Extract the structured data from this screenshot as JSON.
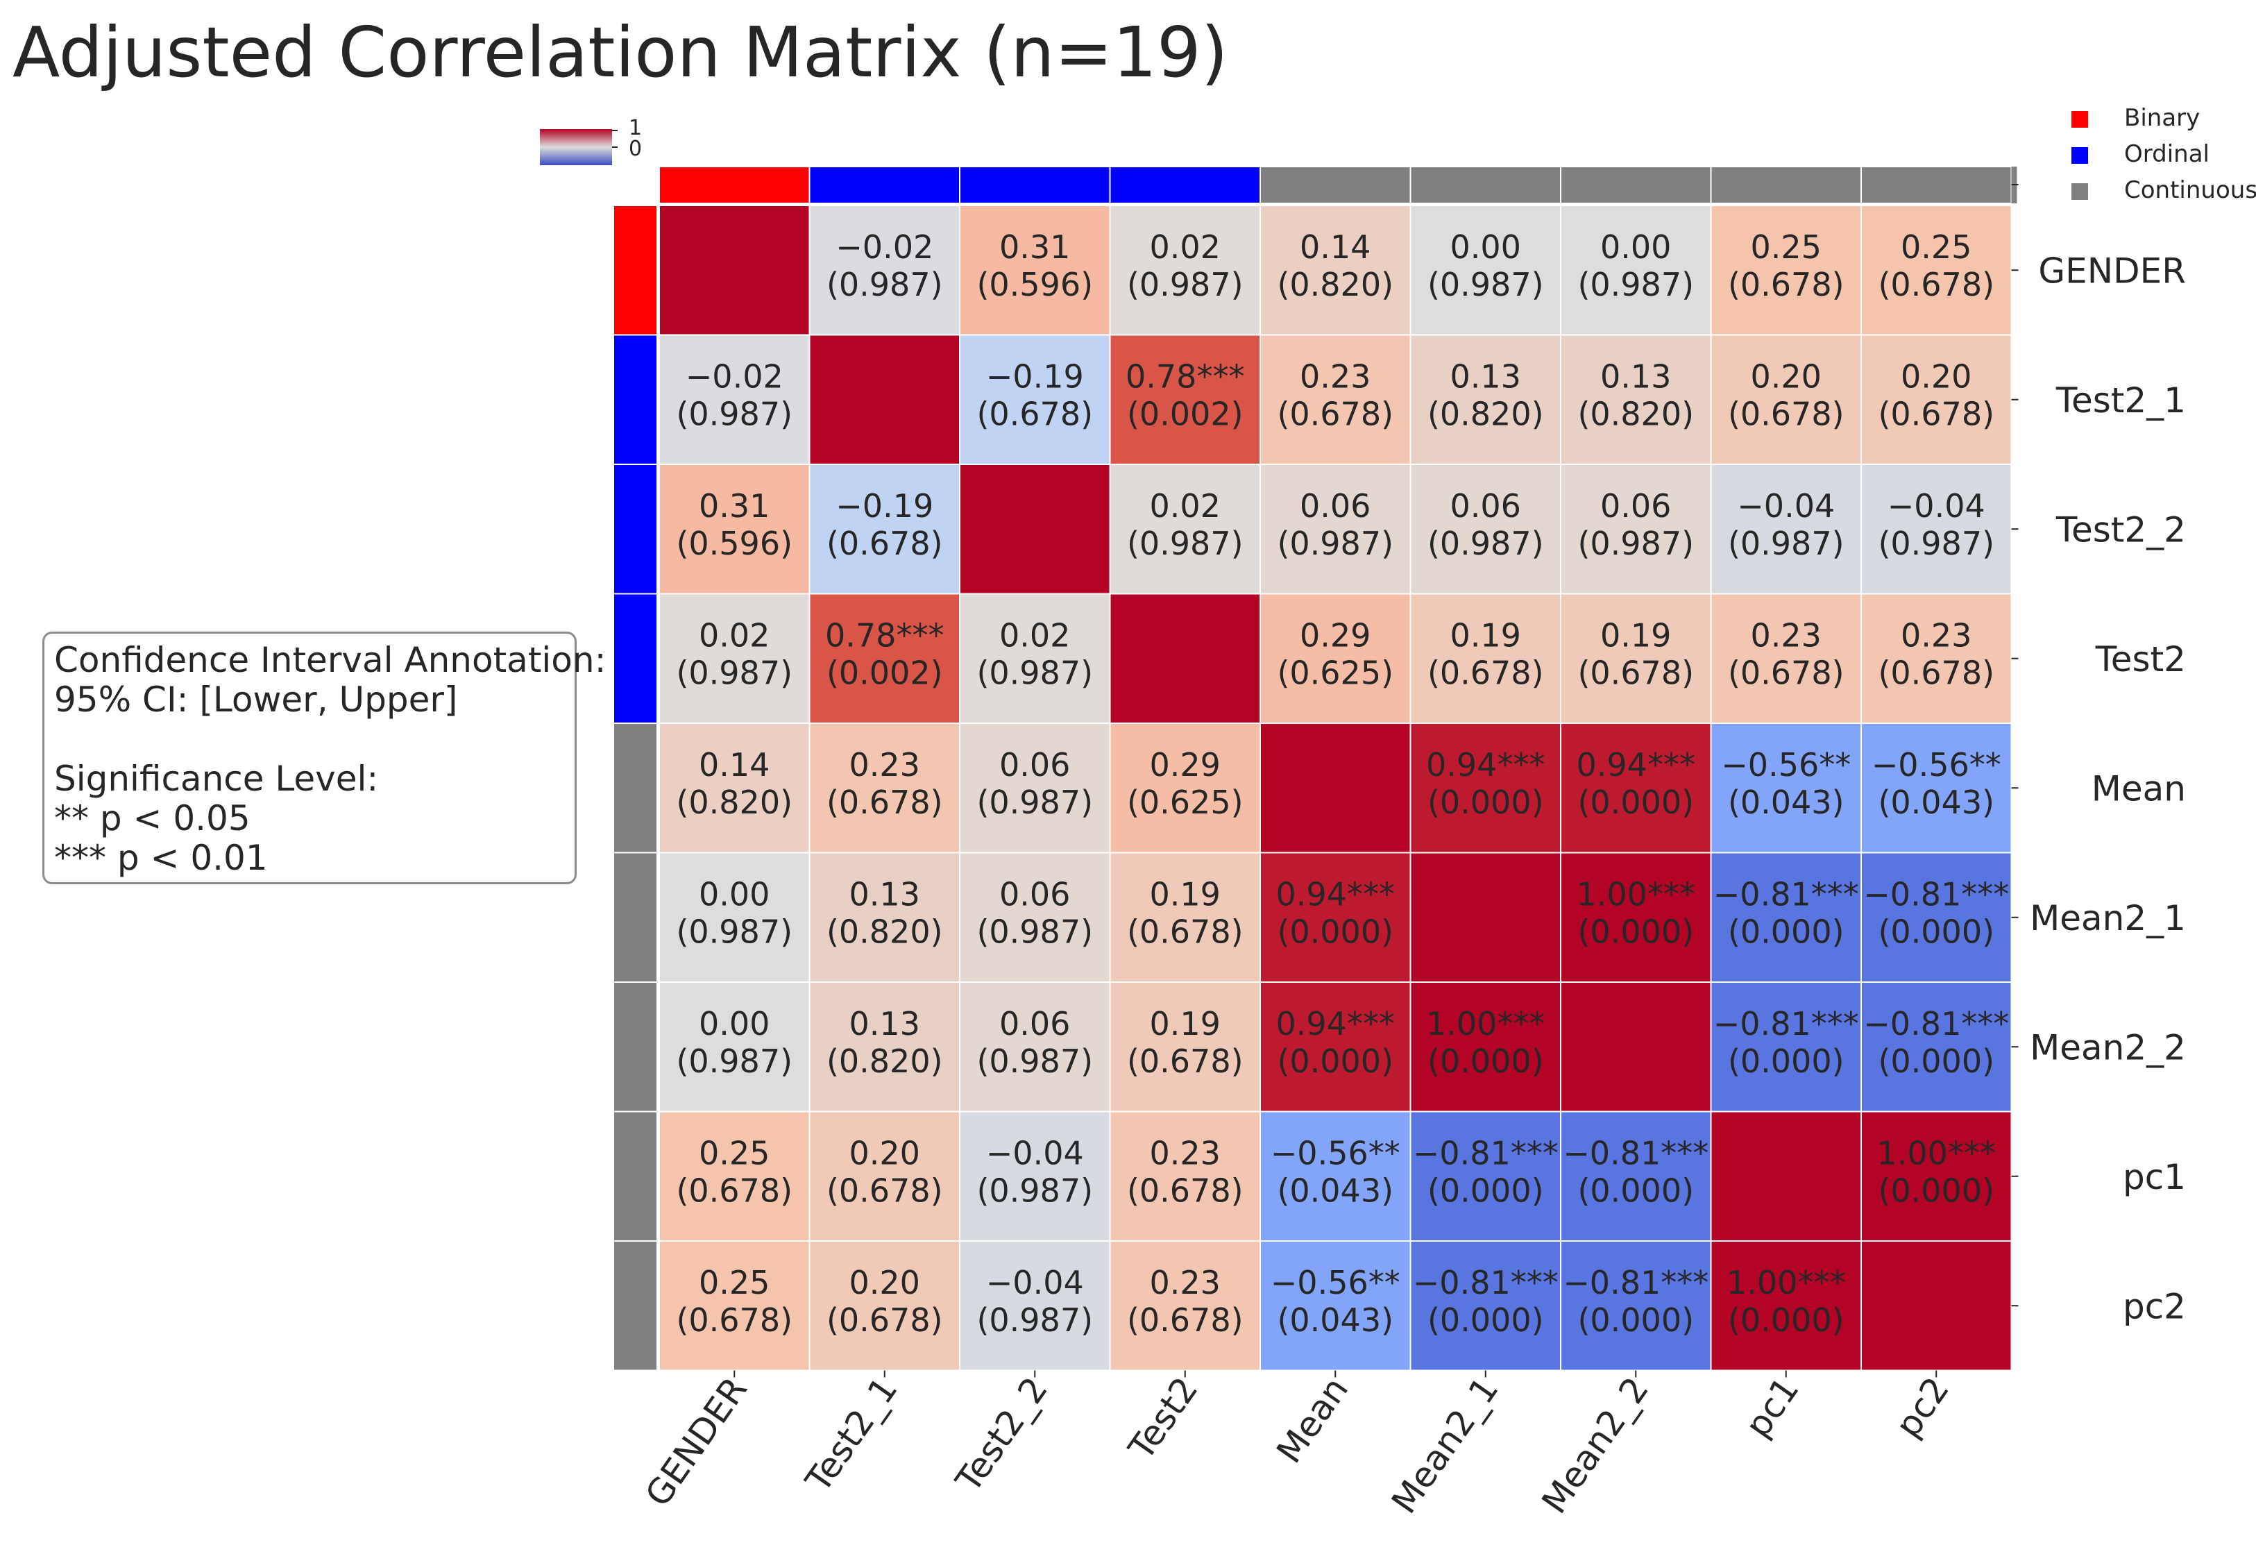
{
  "title": "Adjusted Correlation Matrix (n=19)",
  "annotation": {
    "lines": [
      "Confidence Interval Annotation:",
      "95% CI: [Lower, Upper]",
      "",
      "Significance Level:",
      "** p < 0.05",
      "*** p < 0.01"
    ]
  },
  "legend": {
    "items": [
      {
        "label": "Binary",
        "color": "#ff0000"
      },
      {
        "label": "Ordinal",
        "color": "#0000ff"
      },
      {
        "label": "Continuous",
        "color": "#808080"
      }
    ]
  },
  "colorbar": {
    "ticks": [
      "1",
      "0"
    ],
    "colormap": "coolwarm"
  },
  "chart_data": {
    "type": "heatmap",
    "title": "Adjusted Correlation Matrix (n=19)",
    "variables": [
      "GENDER",
      "Test2_1",
      "Test2_2",
      "Test2",
      "Mean",
      "Mean2_1",
      "Mean2_2",
      "pc1",
      "pc2"
    ],
    "variable_types": [
      "Binary",
      "Ordinal",
      "Ordinal",
      "Ordinal",
      "Continuous",
      "Continuous",
      "Continuous",
      "Continuous",
      "Continuous"
    ],
    "value_range": [
      -1,
      1
    ],
    "diagonal_annotated": false,
    "cells": [
      [
        null,
        {
          "r": "−0.02",
          "p": "(0.987)"
        },
        {
          "r": "0.31",
          "p": "(0.596)"
        },
        {
          "r": "0.02",
          "p": "(0.987)"
        },
        {
          "r": "0.14",
          "p": "(0.820)"
        },
        {
          "r": "0.00",
          "p": "(0.987)"
        },
        {
          "r": "0.00",
          "p": "(0.987)"
        },
        {
          "r": "0.25",
          "p": "(0.678)"
        },
        {
          "r": "0.25",
          "p": "(0.678)"
        }
      ],
      [
        {
          "r": "−0.02",
          "p": "(0.987)"
        },
        null,
        {
          "r": "−0.19",
          "p": "(0.678)"
        },
        {
          "r": "0.78***",
          "p": "(0.002)"
        },
        {
          "r": "0.23",
          "p": "(0.678)"
        },
        {
          "r": "0.13",
          "p": "(0.820)"
        },
        {
          "r": "0.13",
          "p": "(0.820)"
        },
        {
          "r": "0.20",
          "p": "(0.678)"
        },
        {
          "r": "0.20",
          "p": "(0.678)"
        }
      ],
      [
        {
          "r": "0.31",
          "p": "(0.596)"
        },
        {
          "r": "−0.19",
          "p": "(0.678)"
        },
        null,
        {
          "r": "0.02",
          "p": "(0.987)"
        },
        {
          "r": "0.06",
          "p": "(0.987)"
        },
        {
          "r": "0.06",
          "p": "(0.987)"
        },
        {
          "r": "0.06",
          "p": "(0.987)"
        },
        {
          "r": "−0.04",
          "p": "(0.987)"
        },
        {
          "r": "−0.04",
          "p": "(0.987)"
        }
      ],
      [
        {
          "r": "0.02",
          "p": "(0.987)"
        },
        {
          "r": "0.78***",
          "p": "(0.002)"
        },
        {
          "r": "0.02",
          "p": "(0.987)"
        },
        null,
        {
          "r": "0.29",
          "p": "(0.625)"
        },
        {
          "r": "0.19",
          "p": "(0.678)"
        },
        {
          "r": "0.19",
          "p": "(0.678)"
        },
        {
          "r": "0.23",
          "p": "(0.678)"
        },
        {
          "r": "0.23",
          "p": "(0.678)"
        }
      ],
      [
        {
          "r": "0.14",
          "p": "(0.820)"
        },
        {
          "r": "0.23",
          "p": "(0.678)"
        },
        {
          "r": "0.06",
          "p": "(0.987)"
        },
        {
          "r": "0.29",
          "p": "(0.625)"
        },
        null,
        {
          "r": "0.94***",
          "p": "(0.000)"
        },
        {
          "r": "0.94***",
          "p": "(0.000)"
        },
        {
          "r": "−0.56**",
          "p": "(0.043)"
        },
        {
          "r": "−0.56**",
          "p": "(0.043)"
        }
      ],
      [
        {
          "r": "0.00",
          "p": "(0.987)"
        },
        {
          "r": "0.13",
          "p": "(0.820)"
        },
        {
          "r": "0.06",
          "p": "(0.987)"
        },
        {
          "r": "0.19",
          "p": "(0.678)"
        },
        {
          "r": "0.94***",
          "p": "(0.000)"
        },
        null,
        {
          "r": "1.00***",
          "p": "(0.000)"
        },
        {
          "r": "−0.81***",
          "p": "(0.000)"
        },
        {
          "r": "−0.81***",
          "p": "(0.000)"
        }
      ],
      [
        {
          "r": "0.00",
          "p": "(0.987)"
        },
        {
          "r": "0.13",
          "p": "(0.820)"
        },
        {
          "r": "0.06",
          "p": "(0.987)"
        },
        {
          "r": "0.19",
          "p": "(0.678)"
        },
        {
          "r": "0.94***",
          "p": "(0.000)"
        },
        {
          "r": "1.00***",
          "p": "(0.000)"
        },
        null,
        {
          "r": "−0.81***",
          "p": "(0.000)"
        },
        {
          "r": "−0.81***",
          "p": "(0.000)"
        }
      ],
      [
        {
          "r": "0.25",
          "p": "(0.678)"
        },
        {
          "r": "0.20",
          "p": "(0.678)"
        },
        {
          "r": "−0.04",
          "p": "(0.987)"
        },
        {
          "r": "0.23",
          "p": "(0.678)"
        },
        {
          "r": "−0.56**",
          "p": "(0.043)"
        },
        {
          "r": "−0.81***",
          "p": "(0.000)"
        },
        {
          "r": "−0.81***",
          "p": "(0.000)"
        },
        null,
        {
          "r": "1.00***",
          "p": "(0.000)"
        }
      ],
      [
        {
          "r": "0.25",
          "p": "(0.678)"
        },
        {
          "r": "0.20",
          "p": "(0.678)"
        },
        {
          "r": "−0.04",
          "p": "(0.987)"
        },
        {
          "r": "0.23",
          "p": "(0.678)"
        },
        {
          "r": "−0.56**",
          "p": "(0.043)"
        },
        {
          "r": "−0.81***",
          "p": "(0.000)"
        },
        {
          "r": "−0.81***",
          "p": "(0.000)"
        },
        {
          "r": "1.00***",
          "p": "(0.000)"
        },
        null
      ]
    ]
  }
}
